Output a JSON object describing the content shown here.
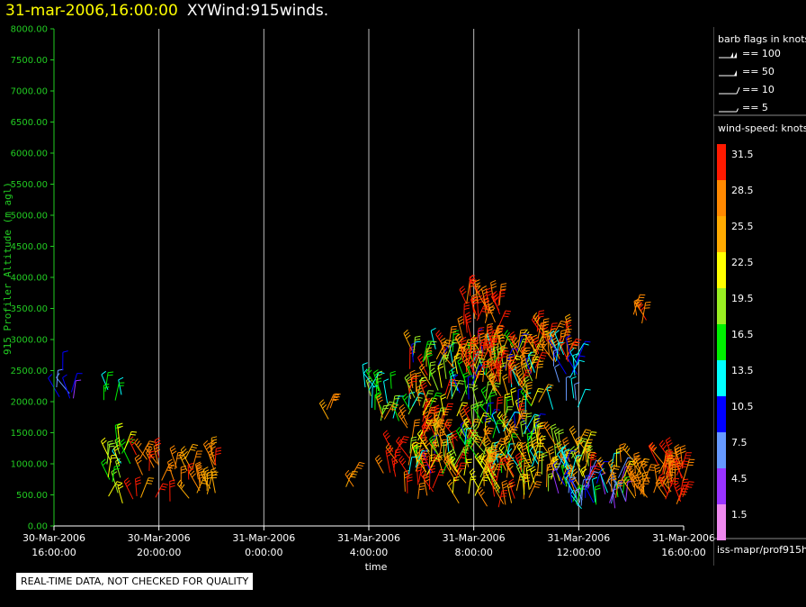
{
  "header": {
    "date": "31-mar-2006,16:00:00",
    "title": "XYWind:915winds."
  },
  "colors": {
    "background": "#000000",
    "axis": "#22cc22",
    "grid": "#bbbbbb"
  },
  "chart_data": {
    "type": "scatter",
    "marker": "wind-barb",
    "xlabel": "time",
    "ylabel": "915 Profiler Altitude (m agl)",
    "xlim": [
      "2006-03-30 16:00",
      "2006-03-31 16:00"
    ],
    "ylim": [
      0,
      8000
    ],
    "y_ticks": [
      "0.00",
      "500.00",
      "1000.00",
      "1500.00",
      "2000.00",
      "2500.00",
      "3000.00",
      "3500.00",
      "4000.00",
      "4500.00",
      "5000.00",
      "5500.00",
      "6000.00",
      "6500.00",
      "7000.00",
      "7500.00",
      "8000.00"
    ],
    "x_ticks": [
      {
        "date": "30-Mar-2006",
        "time": "16:00:00"
      },
      {
        "date": "30-Mar-2006",
        "time": "20:00:00"
      },
      {
        "date": "31-Mar-2006",
        "time": "0:00:00"
      },
      {
        "date": "31-Mar-2006",
        "time": "4:00:00"
      },
      {
        "date": "31-Mar-2006",
        "time": "8:00:00"
      },
      {
        "date": "31-Mar-2006",
        "time": "12:00:00"
      },
      {
        "date": "31-Mar-2006",
        "time": "16:00:00"
      }
    ],
    "grid_vertical": true,
    "clusters": [
      {
        "x0": 0.0,
        "x1": 0.9,
        "y0": 1950,
        "y1": 2550,
        "vmin": 4.5,
        "vmax": 10.5,
        "n": 7
      },
      {
        "x0": 1.3,
        "x1": 2.8,
        "y0": 1900,
        "y1": 2200,
        "vmin": 13.5,
        "vmax": 16.5,
        "n": 5
      },
      {
        "x0": 1.7,
        "x1": 3.2,
        "y0": 350,
        "y1": 1300,
        "vmin": 13.5,
        "vmax": 25.5,
        "n": 18
      },
      {
        "x0": 3.0,
        "x1": 6.2,
        "y0": 350,
        "y1": 1150,
        "vmin": 25.5,
        "vmax": 31.5,
        "n": 40
      },
      {
        "x0": 10.1,
        "x1": 10.6,
        "y0": 1700,
        "y1": 2000,
        "vmin": 25.5,
        "vmax": 31.5,
        "n": 3
      },
      {
        "x0": 11.0,
        "x1": 11.5,
        "y0": 600,
        "y1": 900,
        "vmin": 25.5,
        "vmax": 31.5,
        "n": 3
      },
      {
        "x0": 11.8,
        "x1": 13.2,
        "y0": 1600,
        "y1": 2300,
        "vmin": 13.5,
        "vmax": 19.5,
        "n": 18
      },
      {
        "x0": 12.5,
        "x1": 14.8,
        "y0": 400,
        "y1": 1800,
        "vmin": 28.5,
        "vmax": 31.5,
        "n": 40
      },
      {
        "x0": 13.5,
        "x1": 18.5,
        "y0": 800,
        "y1": 2900,
        "vmin": 10.5,
        "vmax": 31.5,
        "n": 260
      },
      {
        "x0": 15.6,
        "x1": 17.0,
        "y0": 2300,
        "y1": 3800,
        "vmin": 28.5,
        "vmax": 31.5,
        "n": 55
      },
      {
        "x0": 16.6,
        "x1": 18.0,
        "y0": 2250,
        "y1": 2900,
        "vmin": 25.5,
        "vmax": 31.5,
        "n": 20
      },
      {
        "x0": 15.0,
        "x1": 18.2,
        "y0": 300,
        "y1": 900,
        "vmin": 19.5,
        "vmax": 31.5,
        "n": 45
      },
      {
        "x0": 18.4,
        "x1": 19.7,
        "y0": 2600,
        "y1": 3150,
        "vmin": 25.5,
        "vmax": 31.5,
        "n": 25
      },
      {
        "x0": 19.0,
        "x1": 20.0,
        "y0": 1750,
        "y1": 2800,
        "vmin": 7.5,
        "vmax": 13.5,
        "n": 20
      },
      {
        "x0": 18.2,
        "x1": 20.5,
        "y0": 500,
        "y1": 1350,
        "vmin": 19.5,
        "vmax": 31.5,
        "n": 50
      },
      {
        "x0": 19.0,
        "x1": 21.8,
        "y0": 250,
        "y1": 1000,
        "vmin": 4.5,
        "vmax": 16.5,
        "n": 45
      },
      {
        "x0": 21.0,
        "x1": 22.3,
        "y0": 400,
        "y1": 1050,
        "vmin": 22.5,
        "vmax": 28.5,
        "n": 12
      },
      {
        "x0": 22.0,
        "x1": 22.6,
        "y0": 3250,
        "y1": 3450,
        "vmin": 28.5,
        "vmax": 31.5,
        "n": 5
      },
      {
        "x0": 22.1,
        "x1": 23.0,
        "y0": 400,
        "y1": 950,
        "vmin": 25.5,
        "vmax": 28.5,
        "n": 15
      },
      {
        "x0": 23.0,
        "x1": 24.0,
        "y0": 350,
        "y1": 1050,
        "vmin": 28.5,
        "vmax": 31.5,
        "n": 35
      }
    ]
  },
  "legend": {
    "barb_title": "barb flags in knots",
    "barbs": [
      "== 100",
      "== 50",
      "== 10",
      "== 5"
    ],
    "colorbar_title": "wind-speed: knots",
    "colorbar_labels": [
      "31.5",
      "28.5",
      "25.5",
      "22.5",
      "19.5",
      "16.5",
      "13.5",
      "10.5",
      "7.5",
      "4.5",
      "1.5"
    ],
    "colorbar_colors": [
      "#ff1a00",
      "#ff8800",
      "#ffaa00",
      "#ffff00",
      "#99ee22",
      "#00ee00",
      "#00ffff",
      "#0000ff",
      "#6699ff",
      "#9933ff",
      "#ee88ee"
    ]
  },
  "footer": {
    "source": "iss-mapr/prof915h",
    "note": "REAL-TIME DATA, NOT CHECKED FOR QUALITY"
  }
}
